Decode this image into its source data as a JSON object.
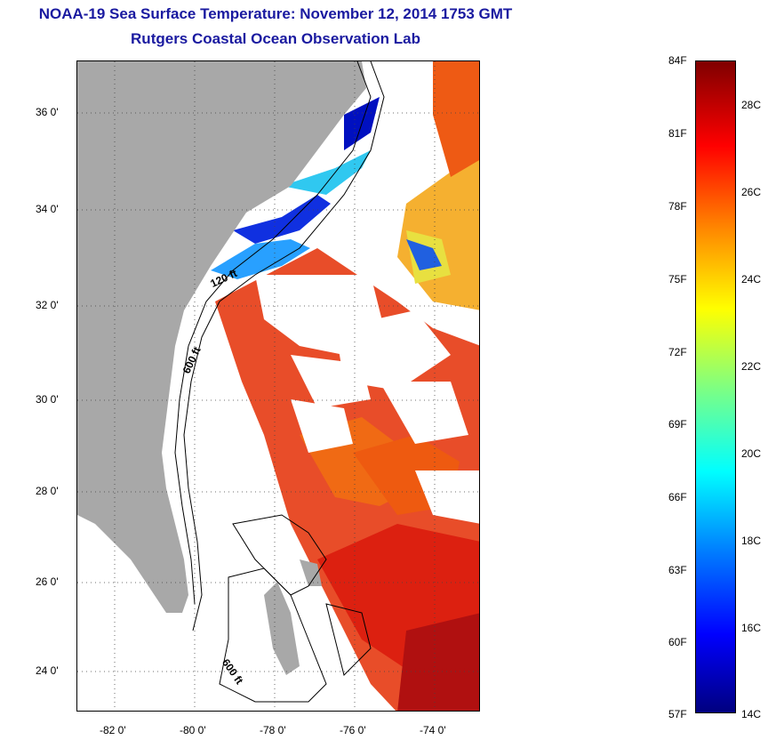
{
  "title_line1": "NOAA-19 Sea Surface Temperature:  November 12, 2014 1753 GMT",
  "title_line2": "Rutgers Coastal Ocean Observation Lab",
  "lat_labels": [
    "36 0'",
    "34 0'",
    "32 0'",
    "30 0'",
    "28 0'",
    "26 0'",
    "24 0'"
  ],
  "lon_labels": [
    "-82 0'",
    "-80 0'",
    "-78 0'",
    "-76 0'",
    "-74 0'"
  ],
  "isobath_labels": [
    "120 ft",
    "600 ft",
    "600 ft"
  ],
  "colorbar": {
    "fahrenheit": [
      "84F",
      "81F",
      "78F",
      "75F",
      "72F",
      "69F",
      "66F",
      "63F",
      "60F",
      "57F"
    ],
    "celsius": [
      "28C",
      "26C",
      "24C",
      "22C",
      "20C",
      "18C",
      "16C",
      "14C"
    ]
  },
  "colors": {
    "title": "#1a1aa0",
    "land": "#a8a8a8"
  }
}
